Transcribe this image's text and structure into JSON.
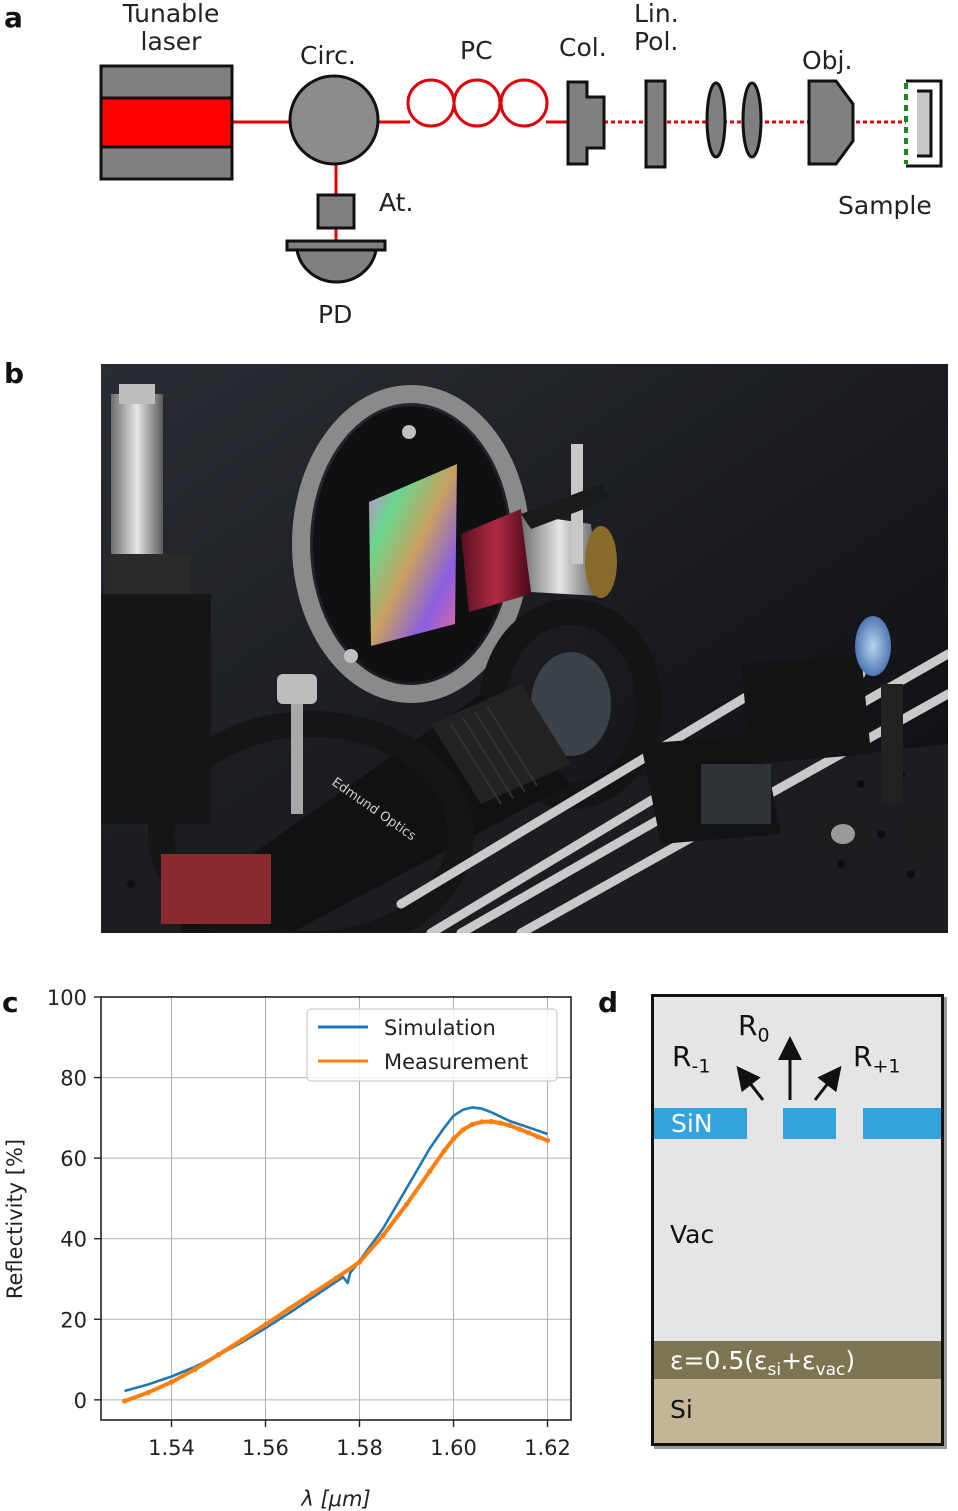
{
  "panel_a": {
    "letter": "a",
    "labels": {
      "laser_line1": "Tunable",
      "laser_line2": "laser",
      "circulator": "Circ.",
      "pol_controller": "PC",
      "collimator": "Col.",
      "polarizer_line1": "Lin.",
      "polarizer_line2": "Pol.",
      "objective": "Obj.",
      "attenuator": "At.",
      "photodiode": "PD",
      "sample": "Sample"
    },
    "colors": {
      "laser": "#ff0000",
      "beam": "#e0000b",
      "component": "#808080",
      "sample_surface": "#1a8a1a"
    }
  },
  "panel_b": {
    "letter": "b"
  },
  "panel_c": {
    "letter": "c"
  },
  "panel_d": {
    "letter": "d",
    "labels": {
      "r0_base": "R",
      "r0_sub": "0",
      "rm1_base": "R",
      "rm1_sub": "-1",
      "rp1_base": "R",
      "rp1_sub": "+1",
      "sin": "SiN",
      "vac": "Vac",
      "eps_a": "ε=0.5(ε",
      "eps_si_sub": "si",
      "eps_plus": "+ε",
      "eps_vac_sub": "vac",
      "eps_close": ")",
      "si": "Si"
    },
    "colors": {
      "background": "#e5e5e5",
      "sin": "#33a3dd",
      "effective": "#7d7551",
      "si": "#c4b797"
    }
  },
  "chart_data": {
    "type": "line",
    "xlabel": "λ [μm]",
    "ylabel": "Reflectivity [%]",
    "xlim": [
      1.525,
      1.625
    ],
    "ylim": [
      -5,
      100
    ],
    "xticks": [
      "1.54",
      "1.56",
      "1.58",
      "1.60",
      "1.62"
    ],
    "yticks": [
      "0",
      "20",
      "40",
      "60",
      "80",
      "100"
    ],
    "grid": true,
    "legend_position": "top-right",
    "series": [
      {
        "name": "Simulation",
        "color": "#1f77b4",
        "x": [
          1.53,
          1.535,
          1.54,
          1.545,
          1.55,
          1.555,
          1.56,
          1.565,
          1.57,
          1.575,
          1.5765,
          1.5775,
          1.578,
          1.58,
          1.585,
          1.59,
          1.595,
          1.598,
          1.6,
          1.602,
          1.604,
          1.606,
          1.608,
          1.61,
          1.612,
          1.615,
          1.618,
          1.62
        ],
        "y": [
          2.2,
          3.8,
          5.8,
          8.2,
          11.1,
          14.3,
          17.8,
          21.5,
          25.4,
          29.3,
          30.5,
          29.0,
          31.5,
          34.5,
          42.5,
          52.5,
          62.5,
          67.5,
          70.5,
          72.0,
          72.6,
          72.3,
          71.4,
          70.3,
          69.2,
          68.0,
          66.8,
          66.0
        ]
      },
      {
        "name": "Measurement",
        "color": "#ff7f0e",
        "x": [
          1.53,
          1.535,
          1.54,
          1.545,
          1.55,
          1.555,
          1.56,
          1.565,
          1.57,
          1.575,
          1.58,
          1.585,
          1.59,
          1.595,
          1.598,
          1.6,
          1.602,
          1.604,
          1.606,
          1.608,
          1.61,
          1.612,
          1.614,
          1.616,
          1.618,
          1.62
        ],
        "y": [
          -0.3,
          1.8,
          4.4,
          7.6,
          11.2,
          14.9,
          18.7,
          22.6,
          26.4,
          30.2,
          34.2,
          40.8,
          48.5,
          56.8,
          61.8,
          64.8,
          67.0,
          68.4,
          69.0,
          69.1,
          68.7,
          68.1,
          67.2,
          66.3,
          65.3,
          64.4
        ]
      }
    ]
  }
}
